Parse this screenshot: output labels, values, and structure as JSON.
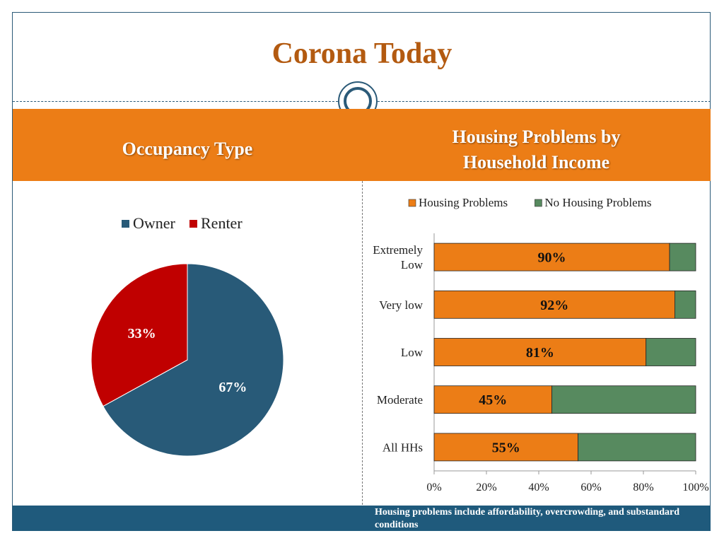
{
  "slide": {
    "title": "Corona Today",
    "left_header": "Occupancy Type",
    "right_header_line1": "Housing Problems by",
    "right_header_line2": "Household Income",
    "footnote": "Housing problems include affordability, overcrowding, and substandard conditions"
  },
  "colors": {
    "accent_orange": "#ec7d16",
    "title_brown": "#b35a10",
    "navy": "#1f5a7c",
    "owner_blue": "#285a78",
    "renter_red": "#c00000",
    "no_problem_green": "#578a5f"
  },
  "chart_data": [
    {
      "type": "pie",
      "legend": [
        "Owner",
        "Renter"
      ],
      "legend_position": "top",
      "slices": [
        {
          "name": "Owner",
          "value": 67,
          "label": "67%",
          "color": "#285a78"
        },
        {
          "name": "Renter",
          "value": 33,
          "label": "33%",
          "color": "#c00000"
        }
      ]
    },
    {
      "type": "bar",
      "orientation": "horizontal",
      "stacked": "percent",
      "legend_position": "top",
      "categories": [
        "Extremely Low",
        "Very low",
        "Low",
        "Moderate",
        "All HHs"
      ],
      "category_lines": [
        [
          "Extremely",
          "Low"
        ],
        [
          "Very low"
        ],
        [
          "Low"
        ],
        [
          "Moderate"
        ],
        [
          "All HHs"
        ]
      ],
      "series": [
        {
          "name": "Housing Problems",
          "values": [
            90,
            92,
            81,
            45,
            55
          ],
          "color": "#ec7d16"
        },
        {
          "name": "No Housing Problems",
          "values": [
            10,
            8,
            19,
            55,
            45
          ],
          "color": "#578a5f"
        }
      ],
      "data_labels": [
        "90%",
        "92%",
        "81%",
        "45%",
        "55%"
      ],
      "xlim": [
        0,
        100
      ],
      "x_ticks": [
        "0%",
        "20%",
        "40%",
        "60%",
        "80%",
        "100%"
      ]
    }
  ]
}
